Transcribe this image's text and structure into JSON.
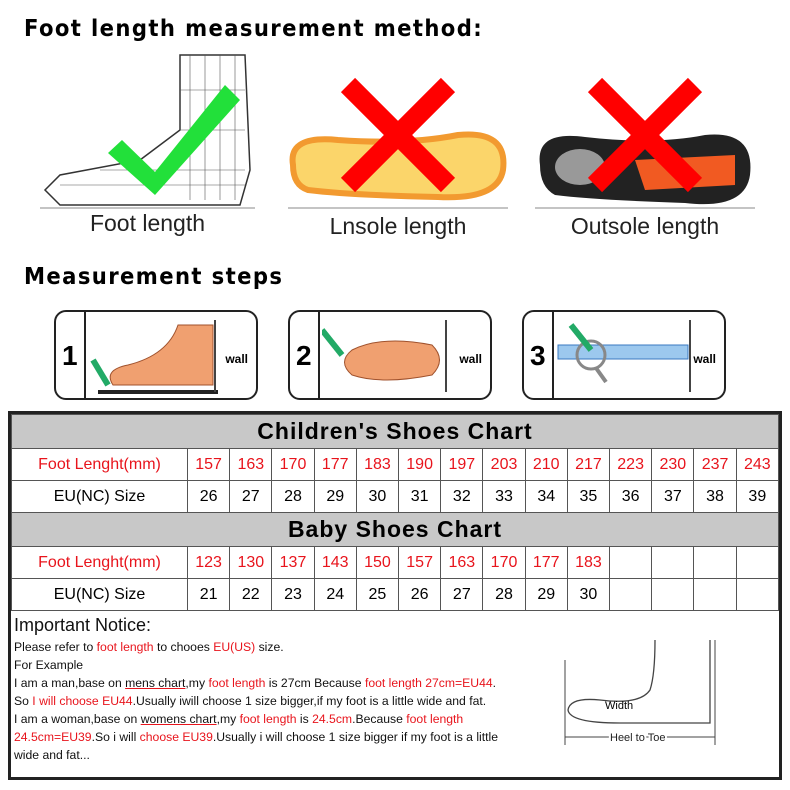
{
  "heading_method": "Foot length measurement method:",
  "methods": [
    {
      "label": "Foot length",
      "verdict": "check"
    },
    {
      "label": "Lnsole length",
      "verdict": "cross"
    },
    {
      "label": "Outsole length",
      "verdict": "cross"
    }
  ],
  "heading_steps": "Measurement steps",
  "steps": [
    {
      "num": "1",
      "wall": "wall"
    },
    {
      "num": "2",
      "wall": "wall"
    },
    {
      "num": "3",
      "wall": "wall"
    }
  ],
  "children_chart": {
    "title": "Children's Shoes Chart",
    "row1_label": "Foot Lenght(mm)",
    "row2_label": "EU(NC) Size",
    "foot_length": [
      "157",
      "163",
      "170",
      "177",
      "183",
      "190",
      "197",
      "203",
      "210",
      "217",
      "223",
      "230",
      "237",
      "243"
    ],
    "eu_size": [
      "26",
      "27",
      "28",
      "29",
      "30",
      "31",
      "32",
      "33",
      "34",
      "35",
      "36",
      "37",
      "38",
      "39"
    ]
  },
  "baby_chart": {
    "title": "Baby Shoes Chart",
    "row1_label": "Foot Lenght(mm)",
    "row2_label": "EU(NC) Size",
    "foot_length": [
      "123",
      "130",
      "137",
      "143",
      "150",
      "157",
      "163",
      "170",
      "177",
      "183",
      "",
      "",
      "",
      ""
    ],
    "eu_size": [
      "21",
      "22",
      "23",
      "24",
      "25",
      "26",
      "27",
      "28",
      "29",
      "30",
      "",
      "",
      "",
      ""
    ]
  },
  "notice": {
    "title": "Important Notice:",
    "l1": [
      "Please refer to ",
      "foot length",
      " to chooes ",
      "EU(US)",
      " size."
    ],
    "l2": "For Example",
    "l3": [
      "I am a man,base on ",
      "mens chart",
      ",my ",
      "foot length",
      " is 27cm Because ",
      "foot length 27cm=EU44",
      "."
    ],
    "l4": [
      "So ",
      "I will choose EU44",
      ".Usually iwill choose 1 size bigger,if my foot is a little wide and fat."
    ],
    "l5": [
      "I am a woman,base on ",
      "womens chart",
      ",my ",
      "foot length",
      " is ",
      "24.5cm",
      ".Because ",
      "foot length"
    ],
    "l6": [
      "24.5cm=EU39",
      ".So i will ",
      "choose EU39",
      ".Usually i will choose 1 size bigger if my foot is a little"
    ],
    "l7": "wide and fat...",
    "diagram_width": "Width",
    "diagram_heel": "Heel to Toe"
  },
  "colors": {
    "red": "#e8141c",
    "green": "#22e03a",
    "header_bg": "#c8c8c8"
  }
}
